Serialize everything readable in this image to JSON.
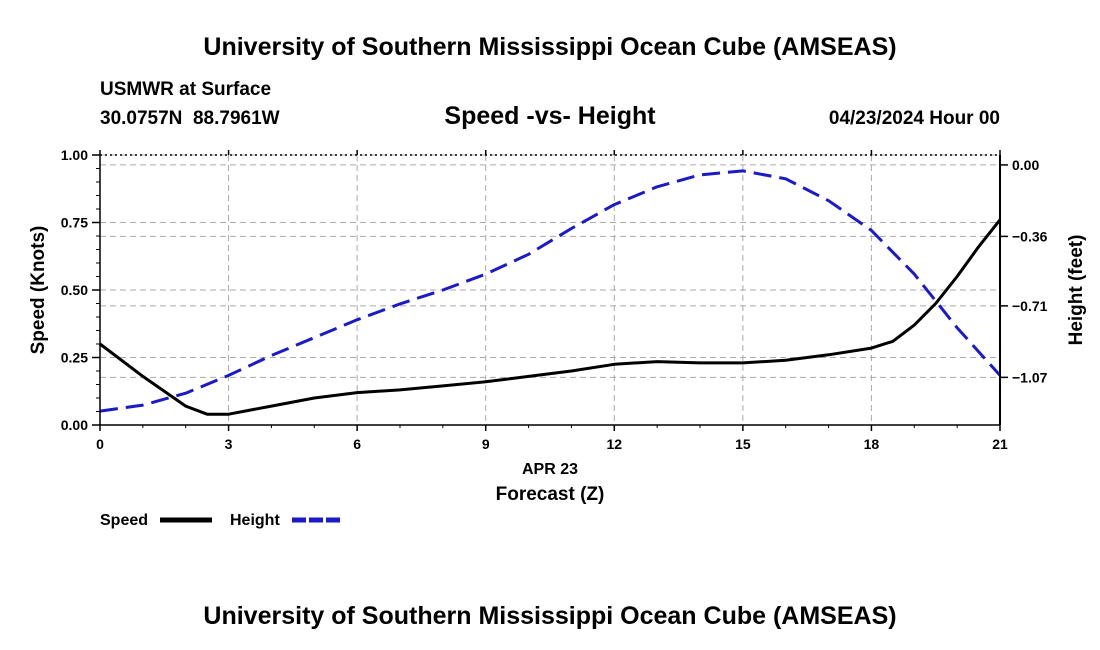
{
  "header": {
    "main_title": "University of Southern Mississippi Ocean Cube (AMSEAS)",
    "station": "USMWR at Surface",
    "location": "30.0757N  88.7961W",
    "subtitle": "Speed -vs- Height",
    "date": "04/23/2024 Hour 00"
  },
  "footer": {
    "title": "University of Southern Mississippi Ocean Cube (AMSEAS)"
  },
  "colors": {
    "speed": "#000000",
    "height": "#1a1ac8",
    "grid": "#aaaaaa"
  },
  "chart_data": {
    "type": "line",
    "title": "Speed -vs- Height",
    "xlabel_date": "APR 23",
    "xlabel": "Forecast (Z)",
    "ylabel_left": "Speed (Knots)",
    "ylabel_right": "Height (feet)",
    "xlim": [
      0,
      21
    ],
    "ylim_left": [
      0,
      1
    ],
    "ylim_right": [
      -1.31,
      0.05
    ],
    "x_ticks": [
      0,
      3,
      6,
      9,
      12,
      15,
      18,
      21
    ],
    "x_tick_labels": [
      "0",
      "3",
      "6",
      "9",
      "12",
      "15",
      "18",
      "21"
    ],
    "y_left_ticks": [
      0,
      0.25,
      0.5,
      0.75,
      1.0
    ],
    "y_left_tick_labels": [
      "0.00",
      "0.25",
      "0.50",
      "0.75",
      "1.00"
    ],
    "y_right_ticks": [
      0.0,
      -0.36,
      -0.71,
      -1.07
    ],
    "y_right_tick_labels": [
      "0.00",
      "−0.36",
      "−0.71",
      "−1.07"
    ],
    "grid": true,
    "legend_position": "bottom-left",
    "series": [
      {
        "name": "Speed",
        "axis": "left",
        "style": "solid",
        "x": [
          0,
          1,
          2,
          2.5,
          3,
          4,
          5,
          6,
          7,
          8,
          9,
          10,
          11,
          12,
          13,
          14,
          15,
          16,
          17,
          18,
          18.5,
          19,
          19.5,
          20,
          20.5,
          21
        ],
        "values": [
          0.3,
          0.18,
          0.07,
          0.04,
          0.04,
          0.07,
          0.1,
          0.12,
          0.13,
          0.145,
          0.16,
          0.18,
          0.2,
          0.225,
          0.235,
          0.23,
          0.23,
          0.24,
          0.26,
          0.285,
          0.31,
          0.37,
          0.45,
          0.55,
          0.66,
          0.76
        ]
      },
      {
        "name": "Height",
        "axis": "right",
        "style": "dashed",
        "x": [
          0,
          1,
          2,
          3,
          4,
          5,
          6,
          7,
          8,
          9,
          10,
          11,
          12,
          13,
          14,
          15,
          16,
          17,
          18,
          19,
          20,
          21
        ],
        "values": [
          -1.24,
          -1.21,
          -1.15,
          -1.06,
          -0.96,
          -0.87,
          -0.78,
          -0.7,
          -0.63,
          -0.55,
          -0.45,
          -0.32,
          -0.2,
          -0.11,
          -0.05,
          -0.03,
          -0.07,
          -0.18,
          -0.33,
          -0.55,
          -0.82,
          -1.06
        ]
      }
    ],
    "legend": [
      {
        "name": "Speed",
        "style": "solid"
      },
      {
        "name": "Height",
        "style": "dashed"
      }
    ]
  }
}
